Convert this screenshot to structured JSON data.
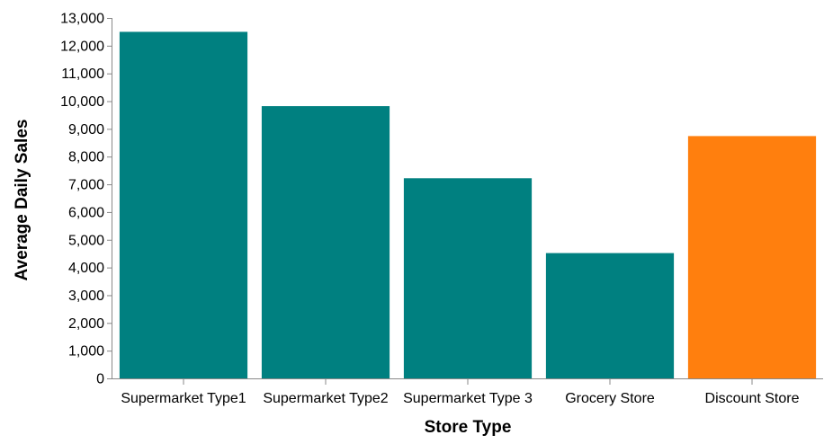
{
  "chart_data": {
    "type": "bar",
    "title": "",
    "xlabel": "Store Type",
    "ylabel": "Average Daily Sales",
    "categories": [
      "Supermarket Type1",
      "Supermarket Type2",
      "Supermarket Type 3",
      "Grocery Store",
      "Discount Store"
    ],
    "values": [
      12500,
      9820,
      7220,
      4520,
      8740
    ],
    "bar_colors": [
      "#008080",
      "#008080",
      "#008080",
      "#008080",
      "#ff7f0e"
    ],
    "ylim": [
      0,
      13000
    ],
    "yticks": [
      0,
      1000,
      2000,
      3000,
      4000,
      5000,
      6000,
      7000,
      8000,
      9000,
      10000,
      11000,
      12000,
      13000
    ],
    "ytick_labels": [
      "0",
      "1,000",
      "2,000",
      "3,000",
      "4,000",
      "5,000",
      "6,000",
      "7,000",
      "8,000",
      "9,000",
      "10,000",
      "11,000",
      "12,000",
      "13,000"
    ],
    "grid": false,
    "legend": "none"
  }
}
